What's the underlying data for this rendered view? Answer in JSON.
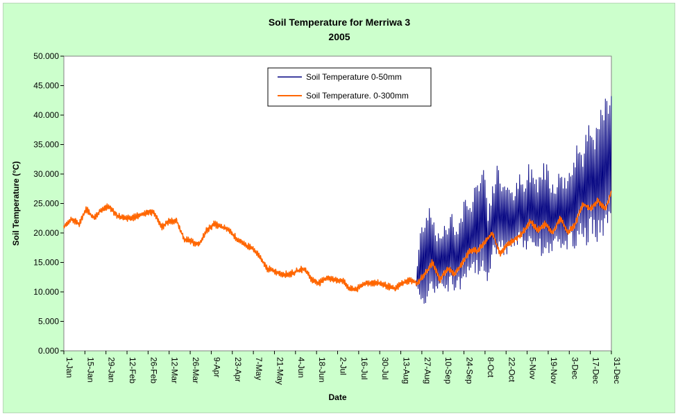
{
  "chart_data": {
    "type": "line",
    "title": "Soil Temperature for Merriwa 3",
    "subtitle": "2005",
    "xlabel": "Date",
    "ylabel": "Soil Temperature (°C)",
    "ylim": [
      0,
      50
    ],
    "y_ticks": [
      "0.000",
      "5.000",
      "10.000",
      "15.000",
      "20.000",
      "25.000",
      "30.000",
      "35.000",
      "40.000",
      "45.000",
      "50.000"
    ],
    "x_range": [
      "1-Jan",
      "31-Dec"
    ],
    "x_ticks": [
      "1-Jan",
      "15-Jan",
      "29-Jan",
      "12-Feb",
      "26-Feb",
      "12-Mar",
      "26-Mar",
      "9-Apr",
      "23-Apr",
      "7-May",
      "21-May",
      "4-Jun",
      "18-Jun",
      "2-Jul",
      "16-Jul",
      "30-Jul",
      "13-Aug",
      "27-Aug",
      "10-Sep",
      "24-Sep",
      "8-Oct",
      "22-Oct",
      "5-Nov",
      "19-Nov",
      "3-Dec",
      "17-Dec",
      "31-Dec"
    ],
    "grid": false,
    "legend_position": "top-center",
    "plot_background": "#ffffff",
    "series": [
      {
        "name": "Soil Temperature 0-50mm",
        "color": "#000080",
        "x": [
          "23-Aug",
          "26-Aug",
          "29-Aug",
          "1-Sep",
          "4-Sep",
          "7-Sep",
          "10-Sep",
          "13-Sep",
          "16-Sep",
          "19-Sep",
          "22-Sep",
          "25-Sep",
          "28-Sep",
          "1-Oct",
          "4-Oct",
          "7-Oct",
          "10-Oct",
          "13-Oct",
          "16-Oct",
          "19-Oct",
          "22-Oct",
          "25-Oct",
          "28-Oct",
          "31-Oct",
          "3-Nov",
          "6-Nov",
          "9-Nov",
          "12-Nov",
          "15-Nov",
          "18-Nov",
          "21-Nov",
          "24-Nov",
          "27-Nov",
          "30-Nov",
          "3-Dec",
          "6-Dec",
          "9-Dec",
          "12-Dec",
          "15-Dec",
          "18-Dec",
          "21-Dec",
          "24-Dec",
          "27-Dec",
          "31-Dec"
        ],
        "y_max": [
          12,
          21,
          24,
          26,
          23,
          20,
          21,
          22,
          25,
          21,
          24,
          27,
          25,
          30,
          29,
          33,
          25,
          28,
          32,
          29,
          30,
          27,
          28,
          30,
          28,
          32,
          31,
          30,
          32,
          33,
          30,
          29,
          31,
          30,
          31,
          32,
          37,
          35,
          40,
          40,
          38,
          41,
          43,
          44
        ],
        "y_min": [
          11,
          7,
          8,
          8,
          9,
          10,
          11,
          9,
          10,
          10,
          10,
          10,
          12,
          11,
          13,
          14,
          11,
          15,
          15,
          16,
          16,
          16,
          17,
          18,
          16,
          17,
          17,
          16,
          16,
          16,
          15,
          17,
          17,
          16,
          17,
          17,
          18,
          18,
          17,
          18,
          18,
          18,
          19,
          23
        ]
      },
      {
        "name": "Soil Temperature. 0-300mm",
        "color": "#ff6600",
        "x": [
          "1-Jan",
          "6-Jan",
          "11-Jan",
          "16-Jan",
          "21-Jan",
          "26-Jan",
          "31-Jan",
          "5-Feb",
          "10-Feb",
          "15-Feb",
          "20-Feb",
          "25-Feb",
          "2-Mar",
          "7-Mar",
          "12-Mar",
          "17-Mar",
          "22-Mar",
          "27-Mar",
          "1-Apr",
          "6-Apr",
          "11-Apr",
          "16-Apr",
          "21-Apr",
          "26-Apr",
          "1-May",
          "6-May",
          "11-May",
          "16-May",
          "21-May",
          "26-May",
          "31-May",
          "5-Jun",
          "10-Jun",
          "15-Jun",
          "20-Jun",
          "25-Jun",
          "30-Jun",
          "5-Jul",
          "10-Jul",
          "15-Jul",
          "20-Jul",
          "25-Jul",
          "30-Jul",
          "4-Aug",
          "9-Aug",
          "14-Aug",
          "19-Aug",
          "24-Aug",
          "29-Aug",
          "3-Sep",
          "8-Sep",
          "13-Sep",
          "18-Sep",
          "23-Sep",
          "28-Sep",
          "3-Oct",
          "8-Oct",
          "13-Oct",
          "18-Oct",
          "23-Oct",
          "28-Oct",
          "2-Nov",
          "7-Nov",
          "12-Nov",
          "17-Nov",
          "22-Nov",
          "27-Nov",
          "2-Dec",
          "7-Dec",
          "12-Dec",
          "17-Dec",
          "22-Dec",
          "27-Dec",
          "31-Dec"
        ],
        "y": [
          21,
          22.5,
          21.5,
          24,
          22.5,
          24,
          24.5,
          23,
          22.5,
          22.5,
          23,
          23.5,
          23.5,
          21,
          22,
          22,
          19,
          18.5,
          18,
          20.5,
          21.5,
          21,
          20.5,
          19,
          18,
          17.5,
          16,
          14,
          13.5,
          13,
          13,
          13.5,
          14,
          12,
          11.5,
          12.5,
          12,
          12,
          10.5,
          10.5,
          11.5,
          11.5,
          11.5,
          11,
          10.5,
          11.5,
          12,
          11.5,
          13,
          15,
          12,
          14,
          13,
          15,
          17,
          17,
          18.5,
          20,
          16.5,
          18,
          19,
          20,
          22,
          20.5,
          21.5,
          20,
          22.5,
          20,
          21.5,
          25,
          24,
          25.5,
          24,
          27
        ]
      }
    ]
  }
}
